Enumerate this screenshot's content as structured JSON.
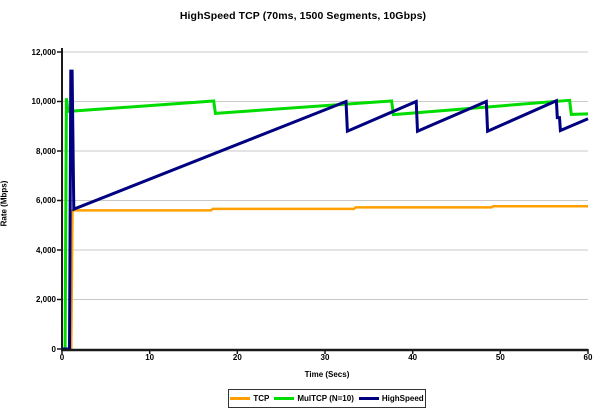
{
  "chart_data": {
    "type": "line",
    "title": "HighSpeed TCP (70ms, 1500 Segments, 10Gbps)",
    "xlabel": "Time (Secs)",
    "ylabel": "Rate (Mbps)",
    "xlim": [
      0,
      60
    ],
    "ylim": [
      0,
      12000
    ],
    "x_ticks": [
      0,
      10,
      20,
      30,
      40,
      50,
      60
    ],
    "x_tick_labels": [
      "0",
      "10",
      "20",
      "30",
      "40",
      "50",
      "60"
    ],
    "y_ticks": [
      0,
      2000,
      4000,
      6000,
      8000,
      10000,
      12000
    ],
    "y_tick_labels": [
      "0",
      "2,000",
      "4,000",
      "6,000",
      "8,000",
      "10,000",
      "12,000"
    ],
    "grid": "horizontal",
    "gridline_color": "#c9c9c9",
    "axis_color": "#1a1a1a",
    "legend_position": "bottom-center",
    "series": [
      {
        "name": "TCP",
        "color": "#FFA000",
        "width": 2.5,
        "points": [
          [
            0,
            0
          ],
          [
            1.05,
            0
          ],
          [
            1.2,
            5600
          ],
          [
            17,
            5600
          ],
          [
            17.2,
            5660
          ],
          [
            33.3,
            5660
          ],
          [
            33.5,
            5720
          ],
          [
            49,
            5720
          ],
          [
            49.2,
            5770
          ],
          [
            60,
            5770
          ]
        ]
      },
      {
        "name": "MulTCP (N=10)",
        "color": "#00DC00",
        "width": 3,
        "points": [
          [
            0,
            0
          ],
          [
            0.35,
            0
          ],
          [
            0.5,
            10130
          ],
          [
            0.7,
            9600
          ],
          [
            17.3,
            10020
          ],
          [
            17.5,
            9520
          ],
          [
            37.6,
            10020
          ],
          [
            37.8,
            9470
          ],
          [
            57.9,
            10050
          ],
          [
            58.1,
            9480
          ],
          [
            60,
            9500
          ]
        ]
      },
      {
        "name": "HighSpeed",
        "color": "#000080",
        "width": 3,
        "points": [
          [
            0,
            0
          ],
          [
            0.85,
            0
          ],
          [
            1.0,
            11230
          ],
          [
            1.15,
            11230
          ],
          [
            1.35,
            5650
          ],
          [
            32.4,
            10000
          ],
          [
            32.55,
            8800
          ],
          [
            40.4,
            10000
          ],
          [
            40.55,
            8800
          ],
          [
            48.4,
            10000
          ],
          [
            48.55,
            8800
          ],
          [
            56.4,
            10030
          ],
          [
            56.5,
            9350
          ],
          [
            56.75,
            9350
          ],
          [
            56.85,
            8830
          ],
          [
            60,
            9300
          ]
        ]
      }
    ]
  }
}
